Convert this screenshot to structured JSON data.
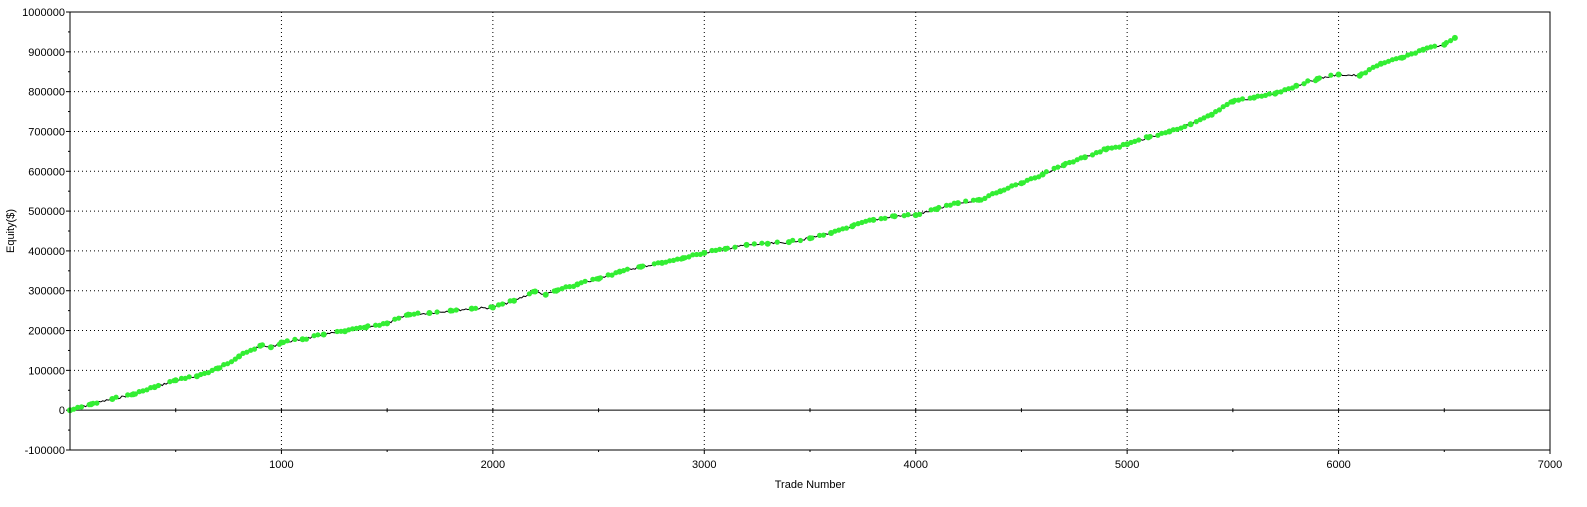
{
  "chart_data": {
    "type": "line",
    "title": "",
    "xlabel": "Trade Number",
    "ylabel": "Equity($)",
    "xlim": [
      0,
      7000
    ],
    "ylim": [
      -100000,
      1000000
    ],
    "x_ticks": [
      1000,
      2000,
      3000,
      4000,
      5000,
      6000,
      7000
    ],
    "x_tick_labels": [
      "1000",
      "2000",
      "3000",
      "4000",
      "5000",
      "6000",
      "7000"
    ],
    "y_ticks": [
      -100000,
      0,
      100000,
      200000,
      300000,
      400000,
      500000,
      600000,
      700000,
      800000,
      900000,
      1000000
    ],
    "y_tick_labels": [
      "-100000",
      "0",
      "100000",
      "200000",
      "300000",
      "400000",
      "500000",
      "600000",
      "700000",
      "800000",
      "900000",
      "1000000"
    ],
    "grid": true,
    "legend": "none",
    "colors": {
      "line": "#000000",
      "new_high_marker": "#33ee33",
      "grid": "#000000",
      "zero_line": "#000000"
    },
    "series": [
      {
        "marker": "new-equity-high",
        "x": [
          0,
          100,
          200,
          300,
          400,
          500,
          600,
          700,
          800,
          900,
          950,
          1000,
          1100,
          1200,
          1300,
          1400,
          1500,
          1600,
          1700,
          1800,
          1900,
          2000,
          2100,
          2200,
          2250,
          2300,
          2400,
          2500,
          2600,
          2700,
          2800,
          2900,
          3000,
          3100,
          3200,
          3300,
          3400,
          3500,
          3600,
          3700,
          3800,
          3900,
          4000,
          4100,
          4200,
          4300,
          4400,
          4500,
          4600,
          4700,
          4800,
          4900,
          5000,
          5100,
          5200,
          5300,
          5400,
          5500,
          5600,
          5700,
          5800,
          5900,
          6000,
          6100,
          6200,
          6300,
          6400,
          6500,
          6550
        ],
        "y": [
          0,
          15000,
          28000,
          40000,
          58000,
          75000,
          85000,
          105000,
          135000,
          162000,
          158000,
          170000,
          178000,
          190000,
          198000,
          208000,
          218000,
          240000,
          244000,
          250000,
          255000,
          258000,
          275000,
          298000,
          290000,
          300000,
          316000,
          330000,
          348000,
          360000,
          370000,
          382000,
          395000,
          405000,
          415000,
          418000,
          422000,
          432000,
          445000,
          462000,
          478000,
          487000,
          490000,
          505000,
          520000,
          528000,
          550000,
          570000,
          592000,
          615000,
          635000,
          655000,
          668000,
          685000,
          700000,
          718000,
          742000,
          775000,
          785000,
          795000,
          815000,
          832000,
          843000,
          840000,
          870000,
          885000,
          905000,
          918000,
          935000
        ]
      }
    ]
  }
}
